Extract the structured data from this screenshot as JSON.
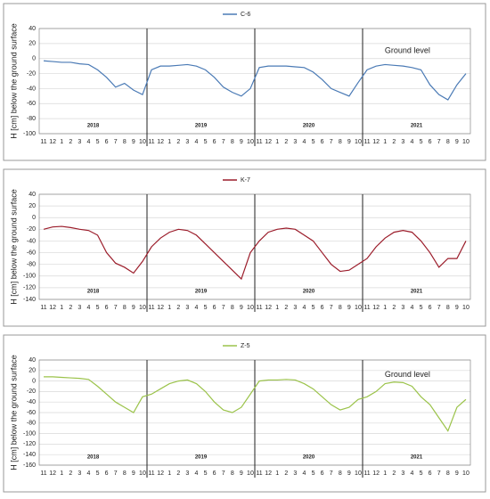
{
  "chart_data": [
    {
      "type": "line",
      "ylabel": "H [cm] below the ground surface",
      "categories": [
        "11",
        "12",
        "1",
        "2",
        "3",
        "4",
        "5",
        "6",
        "7",
        "8",
        "9",
        "10",
        "11",
        "12",
        "1",
        "2",
        "3",
        "4",
        "5",
        "6",
        "7",
        "8",
        "9",
        "10",
        "11",
        "12",
        "1",
        "2",
        "3",
        "4",
        "5",
        "6",
        "7",
        "8",
        "9",
        "10",
        "11",
        "12",
        "1",
        "2",
        "3",
        "4",
        "5",
        "6",
        "7",
        "8",
        "9",
        "10"
      ],
      "series": [
        {
          "name": "C-6",
          "color": "#4a7ab5",
          "values": [
            -3,
            -4,
            -5,
            -5,
            -7,
            -8,
            -15,
            -25,
            -38,
            -33,
            -42,
            -48,
            -15,
            -10,
            -10,
            -9,
            -8,
            -10,
            -15,
            -25,
            -38,
            -45,
            -50,
            -40,
            -12,
            -10,
            -10,
            -10,
            -11,
            -12,
            -18,
            -28,
            -40,
            -45,
            -50,
            -32,
            -15,
            -10,
            -8,
            -9,
            -10,
            -12,
            -15,
            -35,
            -48,
            -55,
            -35,
            -20
          ]
        }
      ],
      "ylim": [
        -100,
        40
      ],
      "yticks": [
        -100,
        -80,
        -60,
        -40,
        -20,
        0,
        20,
        40
      ],
      "grid": true,
      "year_labels": [
        "2018",
        "2019",
        "2020",
        "2021"
      ],
      "annotation": "Ground level"
    },
    {
      "type": "line",
      "ylabel": "H [cm] below the ground surface",
      "categories": [
        "11",
        "12",
        "1",
        "2",
        "3",
        "4",
        "5",
        "6",
        "7",
        "8",
        "9",
        "10",
        "11",
        "12",
        "1",
        "2",
        "3",
        "4",
        "5",
        "6",
        "7",
        "8",
        "9",
        "10",
        "11",
        "12",
        "1",
        "2",
        "3",
        "4",
        "5",
        "6",
        "7",
        "8",
        "9",
        "10",
        "11",
        "12",
        "1",
        "2",
        "3",
        "4",
        "5",
        "6",
        "7",
        "8",
        "9",
        "10"
      ],
      "series": [
        {
          "name": "K-7",
          "color": "#9b1c2a",
          "values": [
            -20,
            -16,
            -15,
            -17,
            -20,
            -22,
            -30,
            -60,
            -78,
            -85,
            -95,
            -75,
            -50,
            -35,
            -25,
            -20,
            -22,
            -30,
            -45,
            -60,
            -75,
            -90,
            -105,
            -60,
            -40,
            -25,
            -20,
            -18,
            -20,
            -30,
            -40,
            -60,
            -80,
            -92,
            -90,
            -80,
            -70,
            -50,
            -35,
            -25,
            -22,
            -25,
            -40,
            -60,
            -85,
            -70,
            -70,
            -40
          ]
        }
      ],
      "ylim": [
        -140,
        40
      ],
      "yticks": [
        -140,
        -120,
        -100,
        -80,
        -60,
        -40,
        -20,
        0,
        20,
        40
      ],
      "grid": true,
      "year_labels": [
        "2018",
        "2019",
        "2020",
        "2021"
      ]
    },
    {
      "type": "line",
      "ylabel": "H [cm] below the ground surface",
      "categories": [
        "11",
        "12",
        "1",
        "2",
        "3",
        "4",
        "5",
        "6",
        "7",
        "8",
        "9",
        "10",
        "11",
        "12",
        "1",
        "2",
        "3",
        "4",
        "5",
        "6",
        "7",
        "8",
        "9",
        "10",
        "11",
        "12",
        "1",
        "2",
        "3",
        "4",
        "5",
        "6",
        "7",
        "8",
        "9",
        "10",
        "11",
        "12",
        "1",
        "2",
        "3",
        "4",
        "5",
        "6",
        "7",
        "8",
        "9",
        "10"
      ],
      "series": [
        {
          "name": "Z-5",
          "color": "#9bc34a",
          "values": [
            8,
            8,
            7,
            6,
            5,
            3,
            -10,
            -25,
            -40,
            -50,
            -60,
            -30,
            -25,
            -15,
            -5,
            0,
            2,
            -5,
            -20,
            -40,
            -55,
            -60,
            -50,
            -25,
            0,
            2,
            2,
            3,
            2,
            -5,
            -15,
            -30,
            -45,
            -55,
            -50,
            -35,
            -30,
            -20,
            -5,
            -2,
            -3,
            -10,
            -30,
            -45,
            -70,
            -95,
            -50,
            -35
          ]
        }
      ],
      "ylim": [
        -160,
        40
      ],
      "yticks": [
        -160,
        -140,
        -120,
        -100,
        -80,
        -60,
        -40,
        -20,
        0,
        20,
        40
      ],
      "grid": true,
      "year_labels": [
        "2018",
        "2019",
        "2020",
        "2021"
      ],
      "annotation": "Ground level"
    }
  ]
}
